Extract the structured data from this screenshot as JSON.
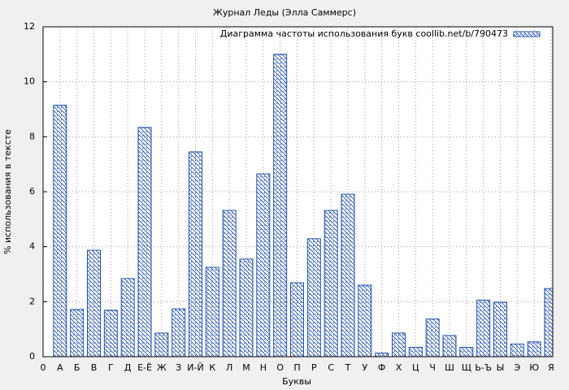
{
  "chart_data": {
    "type": "bar",
    "title": "Журнал Леды (Элла Саммерс)",
    "x_label": "Буквы",
    "y_label": "% использования в тексте",
    "categories": [
      "0",
      "А",
      "Б",
      "В",
      "Г",
      "Д",
      "Е-Ё",
      "Ж",
      "З",
      "И-Й",
      "К",
      "Л",
      "М",
      "Н",
      "О",
      "П",
      "Р",
      "С",
      "Т",
      "У",
      "Ф",
      "Х",
      "Ц",
      "Ч",
      "Ш",
      "Щ",
      "Ь-Ъ",
      "Ы",
      "Э",
      "Ю",
      "Я"
    ],
    "series": [
      {
        "name": "Диаграмма частоты использования букв coollib.net/b/790473",
        "color": "#1f4fb0",
        "values": [
          null,
          9.15,
          1.72,
          3.87,
          1.69,
          2.84,
          8.34,
          0.86,
          1.74,
          7.45,
          3.25,
          5.32,
          3.55,
          6.65,
          11.0,
          2.69,
          4.29,
          5.32,
          5.91,
          2.6,
          0.13,
          0.86,
          0.34,
          1.37,
          0.77,
          0.34,
          2.06,
          1.98,
          0.46,
          0.54,
          2.48
        ]
      }
    ],
    "ylim": [
      0,
      12
    ],
    "yticks": [
      0,
      2,
      4,
      6,
      8,
      10,
      12
    ],
    "grid": true,
    "legend": "top-right"
  }
}
